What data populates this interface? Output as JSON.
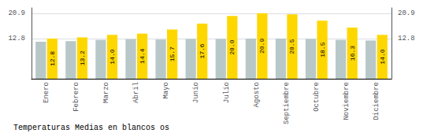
{
  "chart_data": {
    "type": "bar",
    "title": "Temperaturas Medias en blancos os",
    "categories": [
      "Enero",
      "Febrero",
      "Marzo",
      "Abril",
      "Mayo",
      "Junio",
      "Julio",
      "Agosto",
      "Septiembre",
      "Octubre",
      "Noviembre",
      "Diciembre"
    ],
    "series": [
      {
        "color": "#B8C8C8",
        "values": [
          11.8,
          12.0,
          12.4,
          12.6,
          12.5,
          12.7,
          12.7,
          12.8,
          12.8,
          12.7,
          12.4,
          12.2
        ]
      },
      {
        "color": "#FFD700",
        "values": [
          12.8,
          13.2,
          14.0,
          14.4,
          15.7,
          17.6,
          20.0,
          20.9,
          20.5,
          18.5,
          16.3,
          14.0
        ],
        "value_labels": [
          "12.8",
          "13.2",
          "14.0",
          "14.4",
          "15.7",
          "17.6",
          "20.0",
          "20.9",
          "20.5",
          "18.5",
          "16.3",
          "14.0"
        ],
        "data_labels": true
      }
    ],
    "ylim": [
      0,
      22.6
    ],
    "yticks": [
      12.8,
      20.9
    ],
    "y2lim": [
      0,
      22.6
    ],
    "y2ticks": [
      12.8,
      20.9
    ],
    "grid": true
  }
}
